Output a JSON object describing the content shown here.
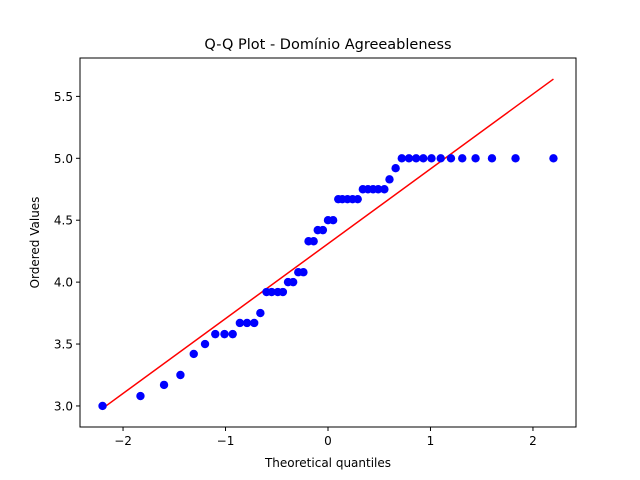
{
  "chart_data": {
    "type": "scatter",
    "title": "Q-Q Plot - Domínio Agreeableness",
    "xlabel": "Theoretical quantiles",
    "ylabel": "Ordered Values",
    "xlim": [
      -2.42,
      2.42
    ],
    "ylim": [
      2.83,
      5.81
    ],
    "xticks": [
      -2,
      -1,
      0,
      1,
      2
    ],
    "xtick_labels": [
      "−2",
      "−1",
      "0",
      "1",
      "2"
    ],
    "yticks": [
      3.0,
      3.5,
      4.0,
      4.5,
      5.0,
      5.5
    ],
    "ytick_labels": [
      "3.0",
      "3.5",
      "4.0",
      "4.5",
      "5.0",
      "5.5"
    ],
    "grid": false,
    "series": [
      {
        "kind": "points",
        "color": "#0000ff",
        "x": [
          -2.2,
          -1.83,
          -1.6,
          -1.44,
          -1.31,
          -1.2,
          -1.1,
          -1.01,
          -0.93,
          -0.86,
          -0.79,
          -0.72,
          -0.66,
          -0.6,
          -0.55,
          -0.49,
          -0.44,
          -0.39,
          -0.34,
          -0.29,
          -0.24,
          -0.19,
          -0.14,
          -0.1,
          -0.05,
          0.0,
          0.05,
          0.1,
          0.14,
          0.19,
          0.24,
          0.29,
          0.34,
          0.39,
          0.44,
          0.49,
          0.55,
          0.6,
          0.66,
          0.72,
          0.79,
          0.86,
          0.93,
          1.01,
          1.1,
          1.2,
          1.31,
          1.44,
          1.6,
          1.83,
          2.2
        ],
        "y": [
          3.0,
          3.08,
          3.17,
          3.25,
          3.42,
          3.5,
          3.58,
          3.58,
          3.58,
          3.67,
          3.67,
          3.67,
          3.75,
          3.92,
          3.92,
          3.92,
          3.92,
          4.0,
          4.0,
          4.08,
          4.08,
          4.33,
          4.33,
          4.42,
          4.42,
          4.5,
          4.5,
          4.67,
          4.67,
          4.67,
          4.67,
          4.67,
          4.75,
          4.75,
          4.75,
          4.75,
          4.75,
          4.83,
          4.92,
          5.0,
          5.0,
          5.0,
          5.0,
          5.0,
          5.0,
          5.0,
          5.0,
          5.0,
          5.0,
          5.0,
          5.0
        ]
      },
      {
        "kind": "fit-line",
        "color": "#ff0000",
        "x": [
          -2.2,
          2.2
        ],
        "y": [
          2.98,
          5.64
        ]
      }
    ]
  }
}
